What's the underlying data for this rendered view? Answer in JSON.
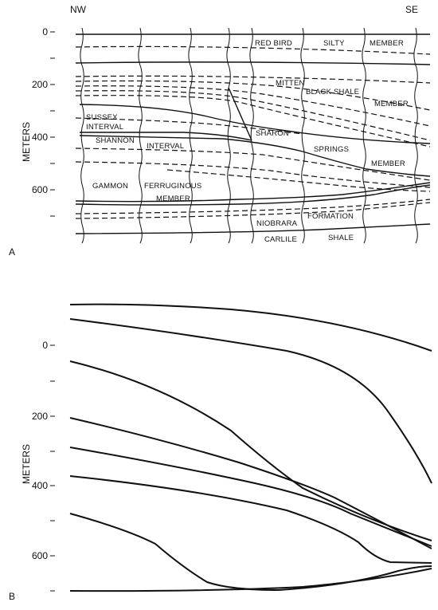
{
  "panel_a": {
    "label": "A",
    "direction_left": "NW",
    "direction_right": "SE",
    "axis_title": "METERS",
    "ticks": [
      {
        "value": 0,
        "text": "0"
      },
      {
        "value": 100,
        "text": ""
      },
      {
        "value": 200,
        "text": "200"
      },
      {
        "value": 300,
        "text": ""
      },
      {
        "value": 400,
        "text": "400"
      },
      {
        "value": 500,
        "text": ""
      },
      {
        "value": 600,
        "text": "600"
      },
      {
        "value": 700,
        "text": ""
      }
    ],
    "units": [
      {
        "id": "red-bird",
        "words": [
          "RED BIRD",
          "SILTY",
          "MEMBER"
        ]
      },
      {
        "id": "mitten",
        "words": [
          "MITTEN",
          "BLACK SHALE",
          "MEMBER"
        ]
      },
      {
        "id": "sussex",
        "words": [
          "SUSSEX",
          "INTERVAL"
        ]
      },
      {
        "id": "shannon",
        "words": [
          "SHANNON",
          "INTERVAL"
        ]
      },
      {
        "id": "sharon",
        "words": [
          "SHARON",
          "SPRINGS",
          "MEMBER"
        ]
      },
      {
        "id": "gammon",
        "words": [
          "GAMMON",
          "FERRUGINOUS",
          "MEMBER"
        ]
      },
      {
        "id": "niobrara",
        "words": [
          "NIOBRARA",
          "FORMATION"
        ]
      },
      {
        "id": "carlile",
        "words": [
          "CARLILE",
          "SHALE"
        ]
      }
    ]
  },
  "panel_b": {
    "label": "B",
    "axis_title": "METERS",
    "ticks": [
      {
        "value": 0,
        "text": "0"
      },
      {
        "value": 100,
        "text": ""
      },
      {
        "value": 200,
        "text": "200"
      },
      {
        "value": 300,
        "text": ""
      },
      {
        "value": 400,
        "text": "400"
      },
      {
        "value": 500,
        "text": ""
      },
      {
        "value": 600,
        "text": "600"
      },
      {
        "value": 700,
        "text": ""
      }
    ]
  }
}
